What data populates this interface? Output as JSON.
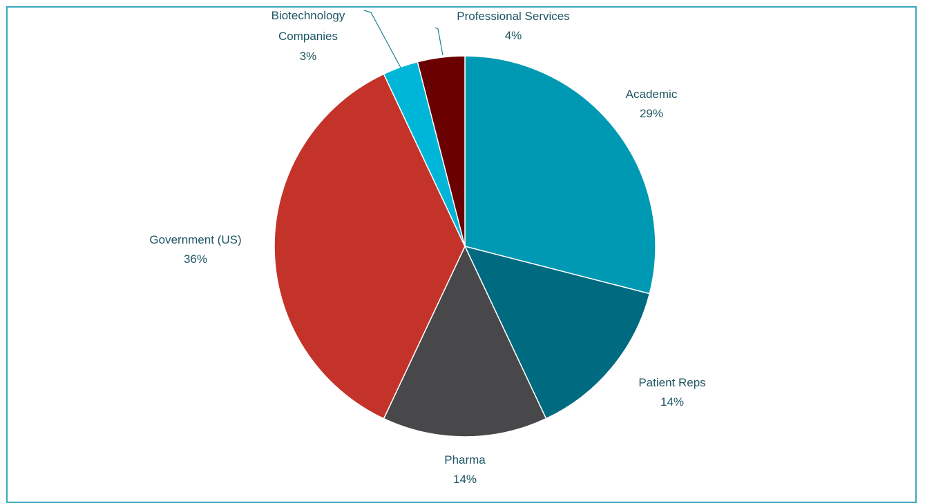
{
  "chart_data": {
    "type": "pie",
    "categories": [
      "Academic",
      "Patient Reps",
      "Pharma",
      "Government (US)",
      "Biotechnology Companies",
      "Professional Services"
    ],
    "values": [
      29,
      14,
      14,
      36,
      3,
      4
    ],
    "value_labels": [
      "29%",
      "14%",
      "14%",
      "36%",
      "3%",
      "4%"
    ],
    "colors": [
      "#0099b4",
      "#006b80",
      "#48484a",
      "#c4332a",
      "#00b6d8",
      "#6b0000"
    ]
  }
}
